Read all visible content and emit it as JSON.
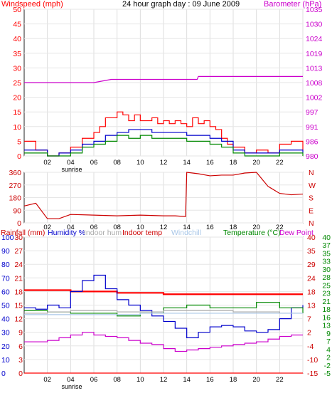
{
  "header": {
    "windspeed_label": "Windspeed (mph)",
    "title": "24 hour graph day : 09 June 2009",
    "barometer_label": "Barometer (hPa)"
  },
  "colors": {
    "red": "#ff0000",
    "darkred": "#cc0000",
    "magenta": "#cc00cc",
    "blue": "#0000cc",
    "green": "#008800",
    "grey": "#aaaaaa",
    "lightblue": "#a9c7e8",
    "frame": "#222222"
  },
  "x_ticks": [
    "02",
    "04",
    "06",
    "08",
    "10",
    "12",
    "14",
    "16",
    "18",
    "20",
    "22",
    ""
  ],
  "sunrise_label": "sunrise",
  "chart_data": [
    {
      "type": "line",
      "name": "wind-barometer",
      "x_range": [
        0,
        24
      ],
      "y_left": {
        "label": "Windspeed (mph)",
        "ticks": [
          "0",
          "5",
          "10",
          "15",
          "20",
          "25",
          "30",
          "35",
          "40",
          "45",
          "50"
        ],
        "range": [
          0,
          50
        ]
      },
      "y_right": {
        "label": "Barometer (hPa)",
        "ticks": [
          "980",
          "986",
          "991",
          "997",
          "1002",
          "1008",
          "1013",
          "1019",
          "1024",
          "1030",
          "1035"
        ],
        "range": [
          980,
          1035
        ]
      },
      "series": [
        {
          "key": "gust",
          "color": "#ff0000",
          "axis": "left",
          "x": [
            0,
            1,
            2,
            3,
            4,
            5,
            6,
            6.5,
            7,
            7.5,
            8,
            8.5,
            9,
            9.5,
            10,
            10.5,
            11,
            11.5,
            12,
            12.5,
            13,
            13.5,
            14,
            14.5,
            15,
            15.5,
            16,
            16.5,
            17,
            17.5,
            18,
            19,
            20,
            21,
            22,
            23,
            24
          ],
          "y": [
            5,
            2,
            0,
            1,
            3,
            6,
            8,
            10,
            13,
            13,
            15,
            14,
            12,
            14,
            12,
            12,
            13,
            11,
            12,
            11,
            12,
            11,
            10,
            13,
            11,
            12,
            10,
            9,
            6,
            4,
            3,
            1,
            2,
            1,
            4,
            5,
            2
          ]
        },
        {
          "key": "average",
          "color": "#0000cc",
          "axis": "left",
          "x": [
            0,
            1,
            2,
            3,
            4,
            5,
            6,
            7,
            8,
            9,
            10,
            11,
            12,
            13,
            14,
            15,
            16,
            17,
            18,
            19,
            20,
            21,
            22,
            23,
            24
          ],
          "y": [
            2,
            2,
            0,
            1,
            2,
            4,
            5,
            7,
            8,
            9,
            9,
            8,
            8,
            8,
            7,
            7,
            6,
            5,
            2,
            1,
            1,
            1,
            2,
            2,
            1
          ]
        },
        {
          "key": "wind-green",
          "color": "#008800",
          "axis": "left",
          "x": [
            0,
            1,
            2,
            3,
            4,
            5,
            6,
            7,
            8,
            9,
            10,
            11,
            12,
            13,
            14,
            15,
            16,
            17,
            18,
            19,
            20,
            21,
            22,
            23,
            24
          ],
          "y": [
            1,
            1,
            0,
            0,
            1,
            3,
            4,
            5,
            7,
            6,
            7,
            6,
            6,
            6,
            5,
            5,
            4,
            3,
            1,
            0,
            0,
            0,
            1,
            1,
            0
          ]
        },
        {
          "key": "barometer",
          "color": "#cc00cc",
          "axis": "right",
          "x": [
            0,
            6,
            7.5,
            14.9,
            15,
            24
          ],
          "y": [
            1007.5,
            1007.5,
            1008.7,
            1008.7,
            1009.8,
            1009.8
          ]
        }
      ]
    },
    {
      "type": "line",
      "name": "wind-direction",
      "x_range": [
        0,
        24
      ],
      "y_left": {
        "label": "",
        "ticks": [
          "0",
          "90",
          "180",
          "270",
          "360"
        ],
        "range": [
          0,
          360
        ]
      },
      "y_right_labels": [
        "N",
        "W",
        "S",
        "E",
        "N"
      ],
      "series": [
        {
          "key": "direction",
          "color": "#cc0000",
          "axis": "left",
          "x": [
            0,
            1,
            2,
            3,
            4,
            6,
            8,
            10,
            12,
            13,
            13.9,
            14,
            15,
            16,
            17,
            18,
            19,
            20,
            21,
            22,
            23,
            24
          ],
          "y": [
            120,
            140,
            30,
            30,
            60,
            55,
            50,
            55,
            50,
            50,
            45,
            360,
            350,
            335,
            340,
            340,
            355,
            360,
            260,
            210,
            200,
            205
          ]
        }
      ]
    },
    {
      "type": "line",
      "name": "rain-humidity-temperature",
      "x_range": [
        0,
        24
      ],
      "legend": [
        "Rainfall (mm)",
        "Humidity %",
        "Indoor hum",
        "Indoor temp",
        "Windchill",
        "Temperature (°C)",
        "Dew Point"
      ],
      "y_axes": {
        "humidity": [
          "0",
          "10",
          "20",
          "30",
          "40",
          "50",
          "60",
          "70",
          "80",
          "90",
          "100"
        ],
        "rain": [
          "0",
          "3",
          "6",
          "9",
          "12",
          "15",
          "18",
          "21",
          "24",
          "27",
          "30"
        ],
        "temperature": [
          "-15",
          "-10",
          "-4",
          "2",
          "7",
          "13",
          "18",
          "24",
          "29",
          "35",
          "40"
        ],
        "dewpoint": [
          "-5",
          "-2",
          "2",
          "4",
          "7",
          "9",
          "13",
          "16",
          "18",
          "21",
          "23",
          "25",
          "28",
          "30",
          "33",
          "35",
          "37",
          "40"
        ]
      },
      "series": [
        {
          "key": "indoor-temp",
          "color": "#ff0000",
          "scale": "humidity",
          "x": [
            0,
            4,
            8,
            12,
            16,
            20,
            24
          ],
          "y": [
            61,
            60,
            59,
            58,
            58,
            58,
            58
          ]
        },
        {
          "key": "humidity",
          "color": "#0000cc",
          "scale": "humidity",
          "x": [
            0,
            1,
            2,
            3,
            4,
            5,
            6,
            7,
            8,
            9,
            10,
            11,
            12,
            13,
            14,
            15,
            16,
            17,
            18,
            19,
            20,
            21,
            22,
            23,
            24
          ],
          "y": [
            48,
            47,
            50,
            48,
            60,
            68,
            72,
            62,
            54,
            50,
            46,
            42,
            38,
            33,
            26,
            30,
            34,
            35,
            34,
            31,
            30,
            32,
            40,
            48,
            50
          ]
        },
        {
          "key": "temperature",
          "color": "#008800",
          "scale": "humidity",
          "x": [
            0,
            2,
            4,
            6,
            8,
            10,
            12,
            14,
            16,
            18,
            20,
            22,
            24
          ],
          "y": [
            46,
            45,
            44,
            44,
            42,
            44,
            48,
            50,
            48,
            48,
            52,
            48,
            44
          ]
        },
        {
          "key": "indoor-hum",
          "color": "#aaaaaa",
          "scale": "humidity",
          "x": [
            0,
            2,
            4,
            6,
            8,
            10,
            12,
            14,
            16,
            18,
            20,
            22,
            24
          ],
          "y": [
            44,
            45,
            46,
            46,
            45,
            45,
            46,
            46,
            46,
            45,
            45,
            44,
            44
          ]
        },
        {
          "key": "windchill",
          "color": "#a9c7e8",
          "scale": "humidity",
          "x": [
            0,
            2,
            4,
            6,
            8,
            10,
            12,
            14,
            16,
            18,
            20,
            22,
            24
          ],
          "y": [
            43,
            43,
            43,
            43,
            43,
            44,
            44,
            44,
            44,
            44,
            44,
            44,
            44
          ]
        },
        {
          "key": "dew-point",
          "color": "#cc00cc",
          "scale": "humidity",
          "x": [
            0,
            1,
            2,
            3,
            4,
            5,
            6,
            7,
            8,
            9,
            10,
            11,
            12,
            13,
            14,
            15,
            16,
            17,
            18,
            19,
            20,
            21,
            22,
            23,
            24
          ],
          "y": [
            23,
            23,
            24,
            26,
            28,
            30,
            28,
            27,
            26,
            24,
            22,
            21,
            18,
            16,
            17,
            18,
            19,
            20,
            21,
            22,
            23,
            25,
            27,
            28,
            28
          ]
        },
        {
          "key": "rain",
          "color": "#ff0000",
          "scale": "humidity",
          "x": [
            0,
            24
          ],
          "y": [
            0,
            0
          ]
        }
      ]
    }
  ]
}
